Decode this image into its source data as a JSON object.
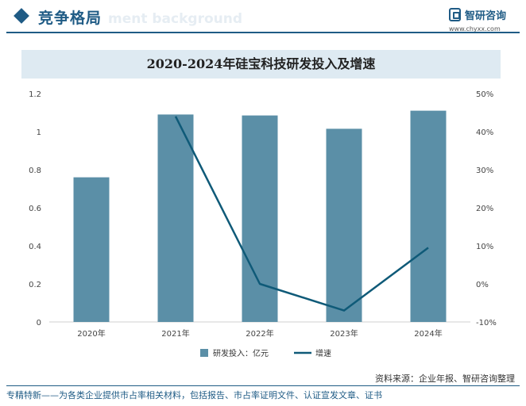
{
  "header": {
    "section_title": "竞争格局",
    "ghost_text": "ment background",
    "logo_name": "智研咨询",
    "logo_url": "www.chyxx.com"
  },
  "colors": {
    "bar": "#5b8fa7",
    "line": "#0f5a78",
    "accent": "#1f5b85"
  },
  "chart_data": {
    "type": "bar",
    "title": "2020-2024年硅宝科技研发投入及增速",
    "categories": [
      "2020年",
      "2021年",
      "2022年",
      "2023年",
      "2024年"
    ],
    "series": [
      {
        "name": "研发投入：亿元",
        "type": "bar",
        "axis": "left",
        "values": [
          0.76,
          1.09,
          1.085,
          1.015,
          1.11
        ]
      },
      {
        "name": "增速",
        "type": "line",
        "axis": "right",
        "values": [
          null,
          44.0,
          0.0,
          -7.0,
          9.5
        ]
      }
    ],
    "left_axis": {
      "ticks": [
        "0",
        "0.2",
        "0.4",
        "0.6",
        "0.8",
        "1",
        "1.2"
      ],
      "min": 0,
      "max": 1.2
    },
    "right_axis": {
      "ticks": [
        "-10%",
        "0%",
        "10%",
        "20%",
        "30%",
        "40%",
        "50%"
      ],
      "min": -10,
      "max": 50
    },
    "grid": false,
    "legend_position": "bottom"
  },
  "footer": {
    "source": "资料来源：企业年报、智研咨询整理",
    "tagline": "专精特新——为各类企业提供市占率相关材料，包括报告、市占率证明文件、认证宣发文章、证书"
  }
}
